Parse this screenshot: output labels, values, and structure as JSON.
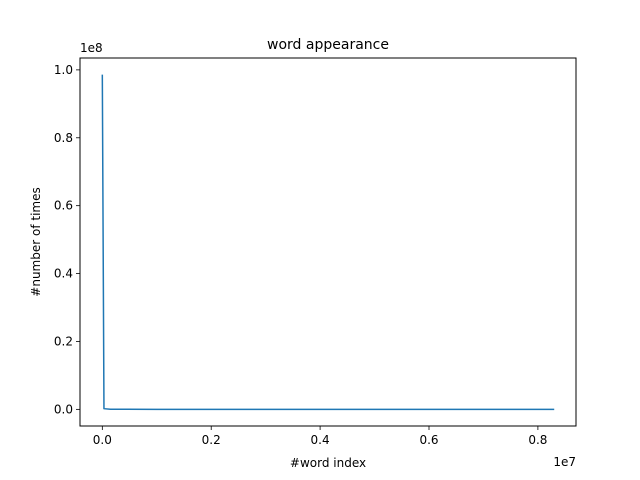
{
  "chart_data": {
    "type": "line",
    "title": "word appearance",
    "xlabel": "#word index",
    "ylabel": "#number of times",
    "x_offset_label": "1e7",
    "y_offset_label": "1e8",
    "x_ticks": [
      0,
      2000000,
      4000000,
      6000000,
      8000000
    ],
    "x_tick_labels": [
      "0.0",
      "0.2",
      "0.4",
      "0.6",
      "0.8"
    ],
    "y_ticks": [
      0,
      20000000,
      40000000,
      60000000,
      80000000,
      100000000
    ],
    "y_tick_labels": [
      "0.0",
      "0.2",
      "0.4",
      "0.6",
      "0.8",
      "1.0"
    ],
    "xlim": [
      -410000,
      8700000
    ],
    "ylim": [
      -4900000,
      103500000
    ],
    "grid": false,
    "series": [
      {
        "color": "#1f77b4",
        "x": [
          0,
          30000,
          150000,
          1000000,
          3000000,
          6000000,
          8300000
        ],
        "y": [
          98600000,
          200000,
          30000,
          5000,
          1000,
          300,
          100
        ]
      }
    ]
  }
}
